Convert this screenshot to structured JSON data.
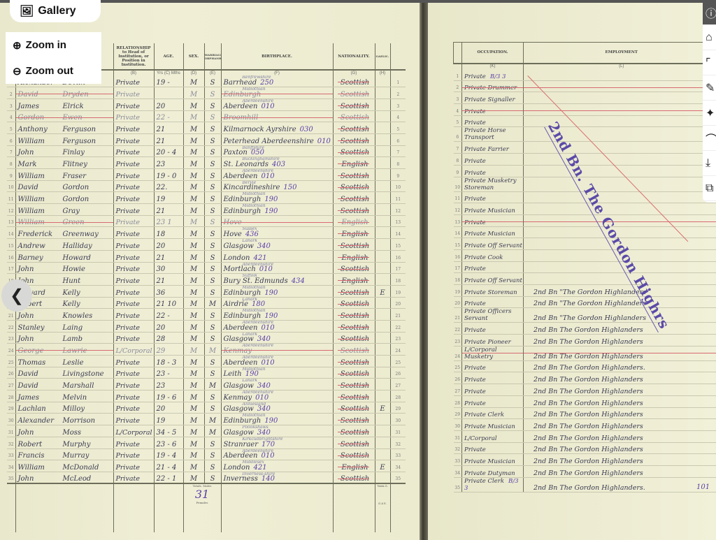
{
  "viewer": {
    "gallery_label": "Gallery",
    "zoom_in_label": "Zoom in",
    "zoom_out_label": "Zoom out",
    "toolbar_icons": [
      "info-icon",
      "tag-icon",
      "scan-icon",
      "pencil-icon",
      "sparkle-icon",
      "crop-icon",
      "download-icon",
      "copy-icon"
    ]
  },
  "left_page": {
    "headers": {
      "relationship": "RELATIONSHIP to Head of Institution, or Position in Institution.",
      "age": "AGE.",
      "sex": "SEX.",
      "marriage": "MARRIAGE ORPHANHOOD",
      "birthplace": "BIRTHPLACE.",
      "nationality": "NATIONALITY.",
      "gaelic": "GAELIC.",
      "col_b": "(B)",
      "col_c": "Yrs (C) Mths",
      "col_d": "(D)",
      "col_e": "(E)",
      "col_f": "(F)",
      "col_g": "(G)",
      "col_h": "(H)"
    },
    "rows": [
      {
        "n": "1",
        "first": "Alexander",
        "last": "Devlin",
        "rel": "Private",
        "age": "19 -",
        "sex": "M",
        "cond": "S",
        "county": "Renfrewshire",
        "place": "Barrhead",
        "code": "250",
        "nat": "Scottish",
        "gaelic": "",
        "struck": false
      },
      {
        "n": "2",
        "first": "David",
        "last": "Dryden",
        "rel": "Private",
        "age": "",
        "sex": "M",
        "cond": "S",
        "county": "Midlothian",
        "place": "Edinburgh",
        "code": "",
        "nat": "Scottish",
        "gaelic": "",
        "struck": true
      },
      {
        "n": "3",
        "first": "James",
        "last": "Elrick",
        "rel": "Private",
        "age": "20",
        "sex": "M",
        "cond": "S",
        "county": "Aberdeenshire",
        "place": "Aberdeen",
        "code": "010",
        "nat": "Scottish",
        "gaelic": "",
        "struck": false
      },
      {
        "n": "4",
        "first": "Gordon",
        "last": "Ewen",
        "rel": "Private",
        "age": "22 -",
        "sex": "M",
        "cond": "S",
        "county": "",
        "place": "Broomhill",
        "code": "",
        "nat": "Scottish",
        "gaelic": "",
        "struck": true
      },
      {
        "n": "5",
        "first": "Anthony",
        "last": "Ferguson",
        "rel": "Private",
        "age": "21",
        "sex": "M",
        "cond": "S",
        "county": "",
        "place": "Kilmarnock Ayrshire",
        "code": "030",
        "nat": "Scottish",
        "gaelic": "",
        "struck": false
      },
      {
        "n": "6",
        "first": "William",
        "last": "Ferguson",
        "rel": "Private",
        "age": "21",
        "sex": "M",
        "cond": "S",
        "county": "",
        "place": "Peterhead Aberdeenshire",
        "code": "010",
        "nat": "Scottish",
        "gaelic": "",
        "struck": false
      },
      {
        "n": "7",
        "first": "John",
        "last": "Finlay",
        "rel": "Private",
        "age": "20 - 4",
        "sex": "M",
        "cond": "S",
        "county": "Banffshire",
        "place": "Paxton",
        "code": "050",
        "nat": "Scottish",
        "gaelic": "",
        "struck": false
      },
      {
        "n": "8",
        "first": "Mark",
        "last": "Flitney",
        "rel": "Private",
        "age": "23",
        "sex": "M",
        "cond": "S",
        "county": "Buckinghamshire",
        "place": "St. Leonards",
        "code": "403",
        "nat": "English",
        "gaelic": "",
        "struck": false
      },
      {
        "n": "9",
        "first": "William",
        "last": "Fraser",
        "rel": "Private",
        "age": "19 - 0",
        "sex": "M",
        "cond": "S",
        "county": "Aberdeenshire",
        "place": "Aberdeen",
        "code": "010",
        "nat": "Scottish",
        "gaelic": "",
        "struck": false
      },
      {
        "n": "10",
        "first": "David",
        "last": "Gordon",
        "rel": "Private",
        "age": "22.",
        "sex": "M",
        "cond": "S",
        "county": "Bervie",
        "place": "Kincardineshire",
        "code": "150",
        "nat": "Scottish",
        "gaelic": "",
        "struck": false
      },
      {
        "n": "11",
        "first": "William",
        "last": "Gordon",
        "rel": "Private",
        "age": "19",
        "sex": "M",
        "cond": "S",
        "county": "Midlothian",
        "place": "Edinburgh",
        "code": "190",
        "nat": "Scottish",
        "gaelic": "",
        "struck": false
      },
      {
        "n": "12",
        "first": "William",
        "last": "Gray",
        "rel": "Private",
        "age": "21",
        "sex": "M",
        "cond": "S",
        "county": "Midlothian",
        "place": "Edinburgh",
        "code": "190",
        "nat": "Scottish",
        "gaelic": "",
        "struck": false
      },
      {
        "n": "13",
        "first": "William",
        "last": "Green",
        "rel": "Private",
        "age": "23 1",
        "sex": "M",
        "cond": "S",
        "county": "",
        "place": "Hove",
        "code": "",
        "nat": "English",
        "gaelic": "",
        "struck": true
      },
      {
        "n": "14",
        "first": "Frederick",
        "last": "Greenway",
        "rel": "Private",
        "age": "18",
        "sex": "M",
        "cond": "S",
        "county": "Sussex",
        "place": "Hove",
        "code": "436",
        "nat": "English",
        "gaelic": "",
        "struck": false
      },
      {
        "n": "15",
        "first": "Andrew",
        "last": "Halliday",
        "rel": "Private",
        "age": "20",
        "sex": "M",
        "cond": "S",
        "county": "Lanark",
        "place": "Glasgow",
        "code": "340",
        "nat": "Scottish",
        "gaelic": "",
        "struck": false
      },
      {
        "n": "16",
        "first": "Barney",
        "last": "Howard",
        "rel": "Private",
        "age": "21",
        "sex": "M",
        "cond": "S",
        "county": "",
        "place": "London",
        "code": "421",
        "nat": "English",
        "gaelic": "",
        "struck": false
      },
      {
        "n": "17",
        "first": "John",
        "last": "Howie",
        "rel": "Private",
        "age": "30",
        "sex": "M",
        "cond": "S",
        "county": "Aberdeenshire",
        "place": "Mortlach",
        "code": "010",
        "nat": "Scottish",
        "gaelic": "",
        "struck": false
      },
      {
        "n": "18",
        "first": "John",
        "last": "Hunt",
        "rel": "Private",
        "age": "21",
        "sex": "M",
        "cond": "S",
        "county": "Suffolk",
        "place": "Bury St. Edmunds",
        "code": "434",
        "nat": "English",
        "gaelic": "",
        "struck": false
      },
      {
        "n": "19",
        "first": "Edward",
        "last": "Kelly",
        "rel": "Private",
        "age": "36",
        "sex": "M",
        "cond": "S",
        "county": "Midlothian",
        "place": "Edinburgh",
        "code": "190",
        "nat": "Scottish",
        "gaelic": "E",
        "struck": false
      },
      {
        "n": "20",
        "first": "Robert",
        "last": "Kelly",
        "rel": "Private",
        "age": "21 10",
        "sex": "M",
        "cond": "M",
        "county": "Lanark",
        "place": "Airdrie",
        "code": "180",
        "nat": "Scottish",
        "gaelic": "",
        "struck": false
      },
      {
        "n": "21",
        "first": "John",
        "last": "Knowles",
        "rel": "Private",
        "age": "22 -",
        "sex": "M",
        "cond": "S",
        "county": "Midlothian",
        "place": "Edinburgh",
        "code": "190",
        "nat": "Scottish",
        "gaelic": "",
        "struck": false
      },
      {
        "n": "22",
        "first": "Stanley",
        "last": "Laing",
        "rel": "Private",
        "age": "20",
        "sex": "M",
        "cond": "S",
        "county": "Aberdeenshire",
        "place": "Aberdeen",
        "code": "010",
        "nat": "Scottish",
        "gaelic": "",
        "struck": false
      },
      {
        "n": "23",
        "first": "John",
        "last": "Lamb",
        "rel": "Private",
        "age": "28",
        "sex": "M",
        "cond": "S",
        "county": "Lanark",
        "place": "Glasgow",
        "code": "340",
        "nat": "Scottish",
        "gaelic": "",
        "struck": false
      },
      {
        "n": "24",
        "first": "George",
        "last": "Lawrie",
        "rel": "L/Corporal",
        "age": "29",
        "sex": "M",
        "cond": "M",
        "county": "Aberdeenshire",
        "place": "Kenmay",
        "code": "",
        "nat": "Scottish",
        "gaelic": "",
        "struck": true
      },
      {
        "n": "25",
        "first": "Thomas",
        "last": "Leslie",
        "rel": "Private",
        "age": "18 - 3",
        "sex": "M",
        "cond": "S",
        "county": "Aberdeenshire",
        "place": "Aberdeen",
        "code": "010",
        "nat": "Scottish",
        "gaelic": "",
        "struck": false
      },
      {
        "n": "26",
        "first": "David",
        "last": "Livingstone",
        "rel": "Private",
        "age": "23 -",
        "sex": "M",
        "cond": "S",
        "county": "Midlothian",
        "place": "Leith",
        "code": "190",
        "nat": "Scottish",
        "gaelic": "",
        "struck": false
      },
      {
        "n": "27",
        "first": "David",
        "last": "Marshall",
        "rel": "Private",
        "age": "23",
        "sex": "M",
        "cond": "M",
        "county": "Lanark",
        "place": "Glasgow",
        "code": "340",
        "nat": "Scottish",
        "gaelic": "",
        "struck": false
      },
      {
        "n": "28",
        "first": "James",
        "last": "Melvin",
        "rel": "Private",
        "age": "19 - 6",
        "sex": "M",
        "cond": "S",
        "county": "Aberdeenshire",
        "place": "Kenmay",
        "code": "010",
        "nat": "Scottish",
        "gaelic": "",
        "struck": false
      },
      {
        "n": "29",
        "first": "Lachlan",
        "last": "Milloy",
        "rel": "Private",
        "age": "20",
        "sex": "M",
        "cond": "S",
        "county": "Anniesland",
        "place": "Glasgow",
        "code": "340",
        "nat": "Scottish",
        "gaelic": "E",
        "struck": false
      },
      {
        "n": "30",
        "first": "Alexander",
        "last": "Morrison",
        "rel": "Private",
        "age": "19",
        "sex": "M",
        "cond": "M",
        "county": "Midlothian",
        "place": "Edinburgh",
        "code": "190",
        "nat": "Scottish",
        "gaelic": "",
        "struck": false
      },
      {
        "n": "31",
        "first": "John",
        "last": "Moss",
        "rel": "L/Corporal",
        "age": "34 - 5",
        "sex": "M",
        "cond": "M",
        "county": "Pollokshaws",
        "place": "Glasgow",
        "code": "340",
        "nat": "Scottish",
        "gaelic": "",
        "struck": false
      },
      {
        "n": "32",
        "first": "Robert",
        "last": "Murphy",
        "rel": "Private",
        "age": "23 - 6",
        "sex": "M",
        "cond": "S",
        "county": "Kirkcudbrightshire",
        "place": "Stranraer",
        "code": "170",
        "nat": "Scottish",
        "gaelic": "",
        "struck": false
      },
      {
        "n": "33",
        "first": "Francis",
        "last": "Murray",
        "rel": "Private",
        "age": "19 - 4",
        "sex": "M",
        "cond": "S",
        "county": "Aberdeenshire",
        "place": "Aberdeen",
        "code": "010",
        "nat": "Scottish",
        "gaelic": "",
        "struck": false
      },
      {
        "n": "34",
        "first": "William",
        "last": "McDonald",
        "rel": "Private",
        "age": "21 - 4",
        "sex": "M",
        "cond": "S",
        "county": "Middlesex",
        "place": "London",
        "code": "421",
        "nat": "English",
        "gaelic": "E",
        "struck": false
      },
      {
        "n": "35",
        "first": "John",
        "last": "McLeod",
        "rel": "Private",
        "age": "22 - 1",
        "sex": "M",
        "cond": "S",
        "county": "Inverness-shire",
        "place": "Inverness",
        "code": "140",
        "nat": "Scottish",
        "gaelic": "",
        "struck": false
      }
    ],
    "totals": {
      "label_top": "Totals. Males",
      "males": "31",
      "label_bottom": "Females",
      "gaelic_label": "Totals G.",
      "gaelic_sub": "G & E."
    }
  },
  "right_page": {
    "headers": {
      "occupation": "OCCUPATION.",
      "employment": "EMPLOYMENT",
      "col_k": "(K)",
      "col_l": "(L)"
    },
    "stamp": "2nd Bn. The Gordon Highrs",
    "row1_mark": "B/3  3",
    "row35_mark": "B/3  3",
    "row35_count": "101",
    "rows": [
      {
        "n": "1",
        "occ": "Private",
        "emp": ""
      },
      {
        "n": "2",
        "occ": "Private Drummer",
        "emp": ""
      },
      {
        "n": "3",
        "occ": "Private Signaller",
        "emp": ""
      },
      {
        "n": "4",
        "occ": "Private",
        "emp": ""
      },
      {
        "n": "5",
        "occ": "Private",
        "emp": ""
      },
      {
        "n": "6",
        "occ": "Private Horse Transport",
        "emp": ""
      },
      {
        "n": "7",
        "occ": "Private Farrier",
        "emp": ""
      },
      {
        "n": "8",
        "occ": "Private",
        "emp": ""
      },
      {
        "n": "9",
        "occ": "Private",
        "emp": ""
      },
      {
        "n": "10",
        "occ": "Private Musketry Storeman",
        "emp": ""
      },
      {
        "n": "11",
        "occ": "Private",
        "emp": ""
      },
      {
        "n": "12",
        "occ": "Private Musician",
        "emp": ""
      },
      {
        "n": "13",
        "occ": "Private",
        "emp": ""
      },
      {
        "n": "14",
        "occ": "Private Musician",
        "emp": ""
      },
      {
        "n": "15",
        "occ": "Private Off Servant",
        "emp": ""
      },
      {
        "n": "16",
        "occ": "Private Cook",
        "emp": ""
      },
      {
        "n": "17",
        "occ": "Private",
        "emp": ""
      },
      {
        "n": "18",
        "occ": "Private Off Servant",
        "emp": ""
      },
      {
        "n": "19",
        "occ": "Private Storeman",
        "emp": "2nd Bn \"The Gordon Highlanders\""
      },
      {
        "n": "20",
        "occ": "Private",
        "emp": "2nd Bn \"The Gordon Highlanders"
      },
      {
        "n": "21",
        "occ": "Private Officers Servant",
        "emp": "2nd Bn \"The Gordon Highlanders"
      },
      {
        "n": "22",
        "occ": "Private",
        "emp": "2nd Bn The Gordon Highlanders"
      },
      {
        "n": "23",
        "occ": "Private Pioneer",
        "emp": "2nd Bn The Gordon Highlanders"
      },
      {
        "n": "24",
        "occ": "L/Corporal Musketry",
        "emp": "2nd Bn The Gordon Highlanders"
      },
      {
        "n": "25",
        "occ": "Private",
        "emp": "2nd Bn The Gordon Highlanders."
      },
      {
        "n": "26",
        "occ": "Private",
        "emp": "2nd Bn The Gordon Highlanders"
      },
      {
        "n": "27",
        "occ": "Private",
        "emp": "2nd Bn The Gordon Highlanders"
      },
      {
        "n": "28",
        "occ": "Private",
        "emp": "2nd Bn The Gordon Highlanders"
      },
      {
        "n": "29",
        "occ": "Private Clerk",
        "emp": "2nd Bn The Gordon Highlanders"
      },
      {
        "n": "30",
        "occ": "Private Musician",
        "emp": "2nd Bn The Gordon Highlanders"
      },
      {
        "n": "31",
        "occ": "L/Corporal",
        "emp": "2nd Bn The Gordon Highlanders"
      },
      {
        "n": "32",
        "occ": "Private",
        "emp": "2nd Bn The Gordon Highlanders"
      },
      {
        "n": "33",
        "occ": "Private Musician",
        "emp": "2nd Bn The Gordon Highlanders"
      },
      {
        "n": "34",
        "occ": "Private Dutyman",
        "emp": "2nd Bn The Gordon Highlanders"
      },
      {
        "n": "35",
        "occ": "Private Clerk",
        "emp": "2nd Bn The Gordon Highlanders."
      }
    ]
  },
  "colors": {
    "ink": "#3a3a52",
    "code_ink": "#5a3fa8",
    "strike": "#d86a72",
    "paper": "#eeedd2",
    "stamp": "#5b4aa8"
  }
}
